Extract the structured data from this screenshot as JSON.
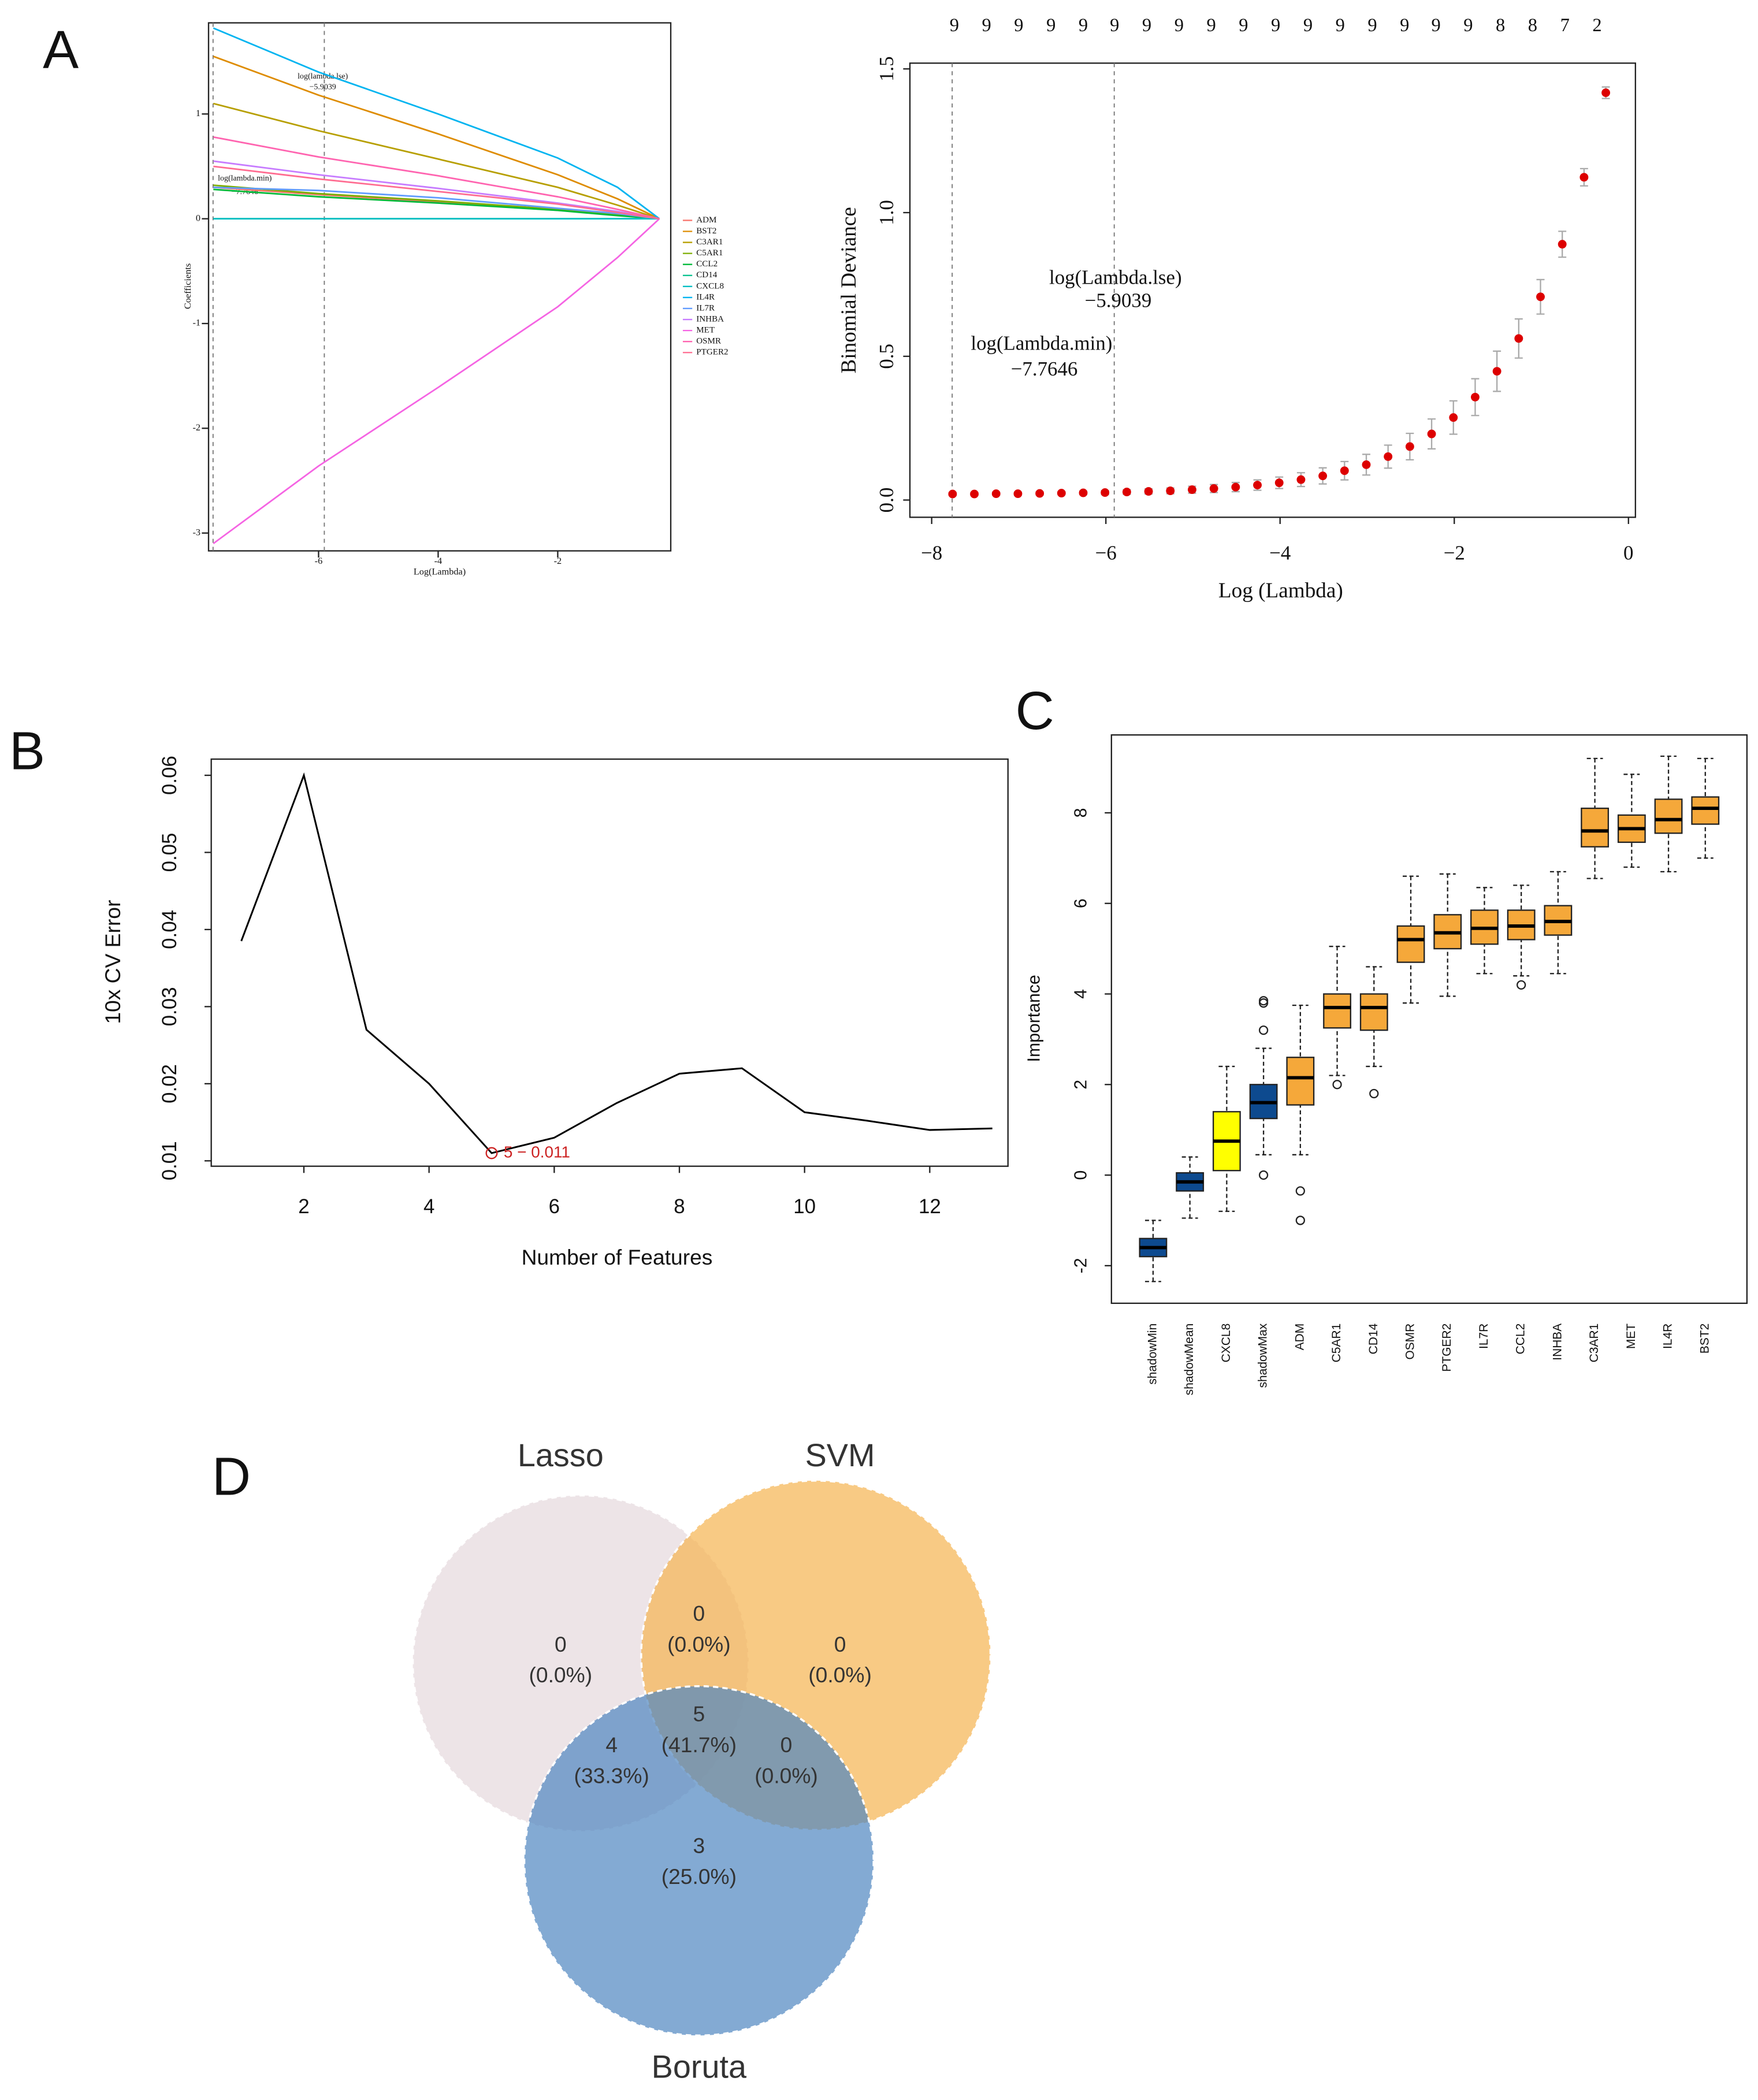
{
  "panels": [
    "A",
    "B",
    "C",
    "D"
  ],
  "chart_data": [
    {
      "type": "line",
      "y_label": "Coefficients",
      "x_label": "Log(Lambda)",
      "xlim": [
        -7.84,
        -0.11
      ],
      "ylim": [
        -3.17,
        1.87
      ],
      "xticks": [
        -6,
        -4,
        -2
      ],
      "yticks": [
        -3,
        -2,
        -1,
        0,
        1
      ],
      "vlines": [
        -7.7646,
        -5.9039
      ],
      "annotations": [
        "log(lambda.lse)",
        "−5.9039",
        "log(lambda.min)",
        "−7.7646"
      ],
      "x": [
        -7.76,
        -6,
        -4,
        -2,
        -1,
        -0.3
      ],
      "series": [
        {
          "name": "ADM",
          "color": "#f8766d",
          "values": [
            0.3,
            0.23,
            0.16,
            0.08,
            0.04,
            0
          ]
        },
        {
          "name": "BST2",
          "color": "#de8c00",
          "values": [
            1.55,
            1.18,
            0.81,
            0.42,
            0.19,
            0
          ]
        },
        {
          "name": "C3AR1",
          "color": "#b79f00",
          "values": [
            1.1,
            0.84,
            0.57,
            0.3,
            0.13,
            0
          ]
        },
        {
          "name": "C5AR1",
          "color": "#7cae00",
          "values": [
            0.32,
            0.24,
            0.17,
            0.09,
            0.04,
            0
          ]
        },
        {
          "name": "CCL2",
          "color": "#00ba38",
          "values": [
            0.28,
            0.21,
            0.15,
            0.08,
            0.03,
            0
          ]
        },
        {
          "name": "CD14",
          "color": "#00c08b",
          "values": [
            0,
            0,
            0,
            0,
            0,
            0
          ]
        },
        {
          "name": "CXCL8",
          "color": "#00bfc4",
          "values": [
            0,
            0,
            0,
            0,
            0,
            0
          ]
        },
        {
          "name": "IL4R",
          "color": "#00b4f0",
          "values": [
            1.82,
            1.4,
            1.0,
            0.58,
            0.3,
            0
          ]
        },
        {
          "name": "IL7R",
          "color": "#619cff",
          "values": [
            0.3,
            0.27,
            0.2,
            0.1,
            0.05,
            0
          ]
        },
        {
          "name": "INHBA",
          "color": "#c77cff",
          "values": [
            0.55,
            0.42,
            0.29,
            0.15,
            0.07,
            0
          ]
        },
        {
          "name": "MET",
          "color": "#f564e3",
          "values": [
            -3.1,
            -2.36,
            -1.61,
            -0.84,
            -0.37,
            0
          ]
        },
        {
          "name": "OSMR",
          "color": "#ff64b0",
          "values": [
            0.78,
            0.59,
            0.41,
            0.21,
            0.09,
            0
          ]
        },
        {
          "name": "PTGER2",
          "color": "#ff6c91",
          "values": [
            0.5,
            0.38,
            0.26,
            0.14,
            0.06,
            0
          ]
        }
      ]
    },
    {
      "type": "errorbar",
      "y_label": "Binomial Deviance",
      "x_label": "Log (Lambda)",
      "xlim": [
        -8.25,
        0.08
      ],
      "ylim": [
        -0.06,
        1.52
      ],
      "xticks": [
        {
          "value": -8,
          "label": "−8"
        },
        {
          "value": -6,
          "label": "−6"
        },
        {
          "value": -4,
          "label": "−4"
        },
        {
          "value": -2,
          "label": "−2"
        },
        0
      ],
      "yticks": [
        {
          "value": 0,
          "label": "0.0"
        },
        0.5,
        {
          "value": 1,
          "label": "1.0"
        },
        1.5
      ],
      "vlines": [
        -7.7646,
        -5.9039
      ],
      "annotations": [
        "log(Lambda.lse)",
        "−5.9039",
        "log(Lambda.min)",
        "−7.7646"
      ],
      "color": "#dd0000",
      "error_color": "#aaaaaa",
      "top_labels": [
        9,
        9,
        9,
        9,
        9,
        9,
        9,
        9,
        9,
        9,
        9,
        9,
        9,
        9,
        9,
        9,
        9,
        8,
        8,
        7,
        2
      ],
      "top_x": [
        -7.74,
        -7.37,
        -7.0,
        -6.63,
        -6.26,
        -5.9,
        -5.53,
        -5.16,
        -4.79,
        -4.42,
        -4.05,
        -3.68,
        -3.31,
        -2.94,
        -2.57,
        -2.21,
        -1.84,
        -1.47,
        -1.1,
        -0.73,
        -0.36
      ],
      "x": [
        -7.76,
        -7.51,
        -7.26,
        -7.01,
        -6.76,
        -6.51,
        -6.26,
        -6.01,
        -5.76,
        -5.51,
        -5.26,
        -5.01,
        -4.76,
        -4.51,
        -4.26,
        -4.01,
        -3.76,
        -3.51,
        -3.26,
        -3.01,
        -2.76,
        -2.51,
        -2.26,
        -2.01,
        -1.76,
        -1.51,
        -1.26,
        -1.01,
        -0.76,
        -0.51,
        -0.26
      ],
      "values": [
        0.021,
        0.021,
        0.022,
        0.022,
        0.023,
        0.024,
        0.025,
        0.026,
        0.028,
        0.03,
        0.032,
        0.036,
        0.04,
        0.045,
        0.052,
        0.06,
        0.071,
        0.084,
        0.102,
        0.123,
        0.151,
        0.186,
        0.23,
        0.287,
        0.358,
        0.448,
        0.562,
        0.707,
        0.89,
        1.123,
        1.417
      ],
      "errors": [
        0.005,
        0.005,
        0.005,
        0.005,
        0.005,
        0.005,
        0.006,
        0.007,
        0.008,
        0.009,
        0.01,
        0.012,
        0.014,
        0.016,
        0.018,
        0.02,
        0.024,
        0.028,
        0.032,
        0.036,
        0.04,
        0.046,
        0.052,
        0.058,
        0.064,
        0.07,
        0.068,
        0.06,
        0.045,
        0.03,
        0.02
      ]
    },
    {
      "type": "line",
      "y_label": "10x CV Error",
      "x_label": "Number of Features",
      "xlim": [
        0.52,
        13.25
      ],
      "ylim": [
        0.0093,
        0.0621
      ],
      "xticks": [
        2,
        4,
        6,
        8,
        10,
        12
      ],
      "yticks": [
        0.01,
        0.02,
        0.03,
        0.04,
        0.05,
        0.06
      ],
      "color": "#000000",
      "annotation": "5 − 0.011",
      "annotation_color": "#cc2222",
      "x": [
        1,
        2,
        3,
        4,
        5,
        6,
        7,
        8,
        9,
        10,
        11,
        12,
        13
      ],
      "values": [
        0.0385,
        0.06,
        0.027,
        0.02,
        0.011,
        0.013,
        0.0175,
        0.0213,
        0.022,
        0.0163,
        0.0152,
        0.014,
        0.0142
      ]
    },
    {
      "type": "box",
      "y_label": "Importance",
      "ylim": [
        -2.83,
        9.72
      ],
      "yticks": [
        -2,
        0,
        2,
        4,
        6,
        8
      ],
      "categories": [
        "shadowMin",
        "shadowMean",
        "CXCL8",
        "shadowMax",
        "ADM",
        "C5AR1",
        "CD14",
        "OSMR",
        "PTGER2",
        "IL7R",
        "CCL2",
        "INHBA",
        "C3AR1",
        "MET",
        "IL4R",
        "BST2"
      ],
      "colors": [
        "#0d4a8f",
        "#0d4a8f",
        "#ffff00",
        "#0d4a8f",
        "#f5a83a",
        "#f5a83a",
        "#f5a83a",
        "#f5a83a",
        "#f5a83a",
        "#f5a83a",
        "#f5a83a",
        "#f5a83a",
        "#f5a83a",
        "#f5a83a",
        "#f5a83a",
        "#f5a83a"
      ],
      "boxes": [
        {
          "min": -2.35,
          "q1": -1.8,
          "median": -1.6,
          "q3": -1.4,
          "max": -1.0,
          "outliers": []
        },
        {
          "min": -0.95,
          "q1": -0.35,
          "median": -0.15,
          "q3": 0.05,
          "max": 0.4,
          "outliers": []
        },
        {
          "min": -0.8,
          "q1": 0.1,
          "median": 0.75,
          "q3": 1.4,
          "max": 2.4,
          "outliers": []
        },
        {
          "min": 0.45,
          "q1": 1.25,
          "median": 1.6,
          "q3": 2.0,
          "max": 2.8,
          "outliers": [
            0.0,
            3.2,
            3.8,
            3.85
          ]
        },
        {
          "min": 0.45,
          "q1": 1.55,
          "median": 2.15,
          "q3": 2.6,
          "max": 3.75,
          "outliers": [
            -0.35,
            -1.0
          ]
        },
        {
          "min": 2.2,
          "q1": 3.25,
          "median": 3.7,
          "q3": 4.0,
          "max": 5.05,
          "outliers": [
            2.0
          ]
        },
        {
          "min": 2.4,
          "q1": 3.2,
          "median": 3.7,
          "q3": 4.0,
          "max": 4.6,
          "outliers": [
            1.8
          ]
        },
        {
          "min": 3.8,
          "q1": 4.7,
          "median": 5.2,
          "q3": 5.5,
          "max": 6.6,
          "outliers": []
        },
        {
          "min": 3.95,
          "q1": 5.0,
          "median": 5.35,
          "q3": 5.75,
          "max": 6.65,
          "outliers": []
        },
        {
          "min": 4.45,
          "q1": 5.1,
          "median": 5.45,
          "q3": 5.85,
          "max": 6.35,
          "outliers": []
        },
        {
          "min": 4.4,
          "q1": 5.2,
          "median": 5.5,
          "q3": 5.85,
          "max": 6.4,
          "outliers": [
            4.2
          ]
        },
        {
          "min": 4.45,
          "q1": 5.3,
          "median": 5.6,
          "q3": 5.95,
          "max": 6.7,
          "outliers": []
        },
        {
          "min": 6.55,
          "q1": 7.25,
          "median": 7.6,
          "q3": 8.1,
          "max": 9.2,
          "outliers": []
        },
        {
          "min": 6.8,
          "q1": 7.35,
          "median": 7.65,
          "q3": 7.95,
          "max": 8.85,
          "outliers": []
        },
        {
          "min": 6.7,
          "q1": 7.55,
          "median": 7.85,
          "q3": 8.3,
          "max": 9.25,
          "outliers": []
        },
        {
          "min": 7.0,
          "q1": 7.75,
          "median": 8.1,
          "q3": 8.35,
          "max": 9.2,
          "outliers": []
        }
      ]
    }
  ],
  "venn": {
    "sets": [
      "Lasso",
      "SVM",
      "Boruta"
    ],
    "colors": [
      "#e6d8dd",
      "#f5b450",
      "#4f86c0"
    ],
    "regions": [
      {
        "count": 0,
        "percent": "(0.0%)"
      },
      {
        "count": 0,
        "percent": "(0.0%)"
      },
      {
        "count": 0,
        "percent": "(0.0%)"
      },
      {
        "count": 5,
        "percent": "(41.7%)"
      },
      {
        "count": 4,
        "percent": "(33.3%)"
      },
      {
        "count": 0,
        "percent": "(0.0%)"
      },
      {
        "count": 3,
        "percent": "(25.0%)"
      }
    ]
  }
}
